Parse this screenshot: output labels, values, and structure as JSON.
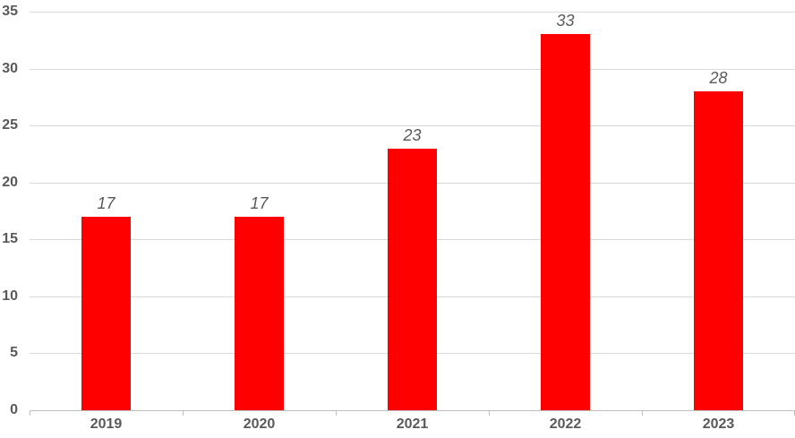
{
  "chart_data": {
    "type": "bar",
    "title": "",
    "xlabel": "",
    "ylabel": "",
    "categories": [
      "2019",
      "2020",
      "2021",
      "2022",
      "2023"
    ],
    "values": [
      17,
      17,
      23,
      33,
      28
    ],
    "data_labels": [
      "17",
      "17",
      "23",
      "33",
      "28"
    ],
    "ytick_labels": [
      "0",
      "5",
      "10",
      "15",
      "20",
      "25",
      "30",
      "35"
    ],
    "ylim": [
      0,
      35
    ],
    "ytick_step": 5,
    "grid": "horizontal",
    "legend_position": "none",
    "colors": {
      "bar": "#ff0000",
      "gridline": "#d9d9d9",
      "axis_line": "#bfbfbf",
      "axis_label": "#595959",
      "data_label": "#595959",
      "background": "#ffffff"
    }
  }
}
